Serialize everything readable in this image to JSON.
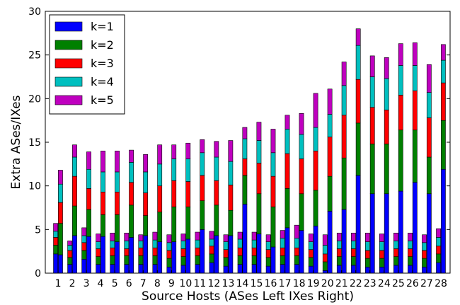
{
  "chart_data": {
    "type": "bar",
    "stacked": true,
    "grouping": "pairs (ASes left, IXes right) per source host",
    "title": "",
    "xlabel": "Source Hosts (ASes Left IXes Right)",
    "ylabel": "Extra ASes/IXes",
    "ylim": [
      0,
      30
    ],
    "yticks": [
      0,
      5,
      10,
      15,
      20,
      25,
      30
    ],
    "grid": false,
    "legend_position": "top-left",
    "categories": [
      "1",
      "2",
      "3",
      "4",
      "5",
      "6",
      "7",
      "8",
      "9",
      "10",
      "11",
      "12",
      "13",
      "14",
      "15",
      "16",
      "17",
      "18",
      "19",
      "20",
      "21",
      "22",
      "23",
      "24",
      "25",
      "26",
      "27",
      "28"
    ],
    "series": [
      {
        "name": "k=1",
        "color": "#0000ff",
        "ases": [
          2.2,
          1.0,
          1.6,
          1.0,
          1.0,
          1.0,
          1.0,
          1.0,
          0.7,
          0.9,
          1.0,
          1.2,
          0.8,
          1.0,
          1.0,
          0.8,
          1.0,
          1.0,
          0.8,
          0.3,
          0.9,
          0.9,
          0.7,
          0.7,
          0.9,
          0.9,
          0.7,
          1.2
        ],
        "ixes": [
          2.1,
          4.3,
          4.2,
          4.2,
          3.6,
          4.1,
          4.3,
          3.6,
          3.6,
          3.9,
          5.0,
          4.3,
          4.3,
          7.9,
          4.5,
          3.0,
          5.2,
          4.9,
          5.4,
          7.1,
          7.3,
          11.2,
          9.1,
          9.1,
          9.4,
          10.4,
          9.1,
          11.9
        ]
      },
      {
        "name": "k=2",
        "color": "#008000",
        "ases": [
          1.0,
          0.8,
          1.0,
          0.9,
          1.0,
          1.0,
          1.0,
          1.0,
          1.0,
          1.0,
          1.0,
          1.0,
          1.0,
          1.0,
          1.0,
          1.0,
          1.0,
          1.0,
          1.0,
          1.0,
          1.0,
          1.0,
          1.0,
          1.0,
          1.0,
          1.0,
          1.0,
          1.0
        ],
        "ixes": [
          3.6,
          3.4,
          3.1,
          2.5,
          3.1,
          3.7,
          2.3,
          3.4,
          4.0,
          3.7,
          3.3,
          3.5,
          2.9,
          3.3,
          4.6,
          4.6,
          4.5,
          4.2,
          4.1,
          4.0,
          5.9,
          6.0,
          5.7,
          5.7,
          7.0,
          6.0,
          4.2,
          5.6
        ]
      },
      {
        "name": "k=3",
        "color": "#ff0000",
        "ases": [
          0.9,
          0.8,
          0.9,
          0.9,
          0.9,
          0.8,
          0.9,
          0.9,
          0.9,
          0.9,
          0.9,
          0.9,
          0.9,
          0.9,
          0.9,
          0.9,
          0.9,
          0.9,
          0.9,
          0.9,
          0.9,
          0.9,
          0.9,
          0.9,
          0.9,
          0.9,
          0.9,
          0.9
        ],
        "ixes": [
          2.4,
          3.4,
          2.4,
          2.6,
          2.6,
          2.6,
          2.6,
          3.0,
          3.0,
          2.9,
          2.9,
          2.8,
          2.9,
          1.9,
          3.5,
          3.5,
          4.0,
          4.0,
          4.5,
          4.5,
          4.9,
          5.0,
          4.2,
          3.9,
          4.0,
          4.5,
          4.5,
          4.3
        ]
      },
      {
        "name": "k=4",
        "color": "#00bfbf",
        "ases": [
          0.7,
          0.6,
          0.8,
          0.8,
          0.8,
          0.9,
          0.8,
          0.9,
          0.9,
          0.9,
          0.9,
          0.8,
          0.9,
          1.0,
          0.9,
          0.9,
          1.1,
          1.1,
          0.9,
          1.0,
          0.9,
          0.9,
          1.0,
          1.0,
          0.9,
          0.9,
          0.9,
          1.0
        ],
        "ixes": [
          2.1,
          2.2,
          2.2,
          2.3,
          2.3,
          2.3,
          2.4,
          2.5,
          2.5,
          2.6,
          2.6,
          2.7,
          2.7,
          2.3,
          2.6,
          2.7,
          2.8,
          2.8,
          2.7,
          2.6,
          3.4,
          3.9,
          3.5,
          3.6,
          3.4,
          2.9,
          2.9,
          2.6
        ]
      },
      {
        "name": "k=5",
        "color": "#bf00bf",
        "ases": [
          0.9,
          0.5,
          0.9,
          0.9,
          0.9,
          0.9,
          0.7,
          0.9,
          0.9,
          0.8,
          0.9,
          0.9,
          0.8,
          0.8,
          0.9,
          0.8,
          0.9,
          1.5,
          0.9,
          1.2,
          0.9,
          0.9,
          1.0,
          0.9,
          0.9,
          0.9,
          0.9,
          1.0
        ],
        "ixes": [
          1.6,
          1.4,
          2.0,
          2.4,
          2.4,
          1.4,
          2.0,
          2.2,
          1.6,
          1.8,
          1.5,
          1.8,
          2.4,
          1.3,
          2.1,
          2.7,
          1.6,
          2.4,
          3.9,
          2.9,
          2.7,
          1.9,
          2.4,
          2.4,
          2.5,
          2.6,
          3.2,
          1.8
        ]
      }
    ]
  }
}
